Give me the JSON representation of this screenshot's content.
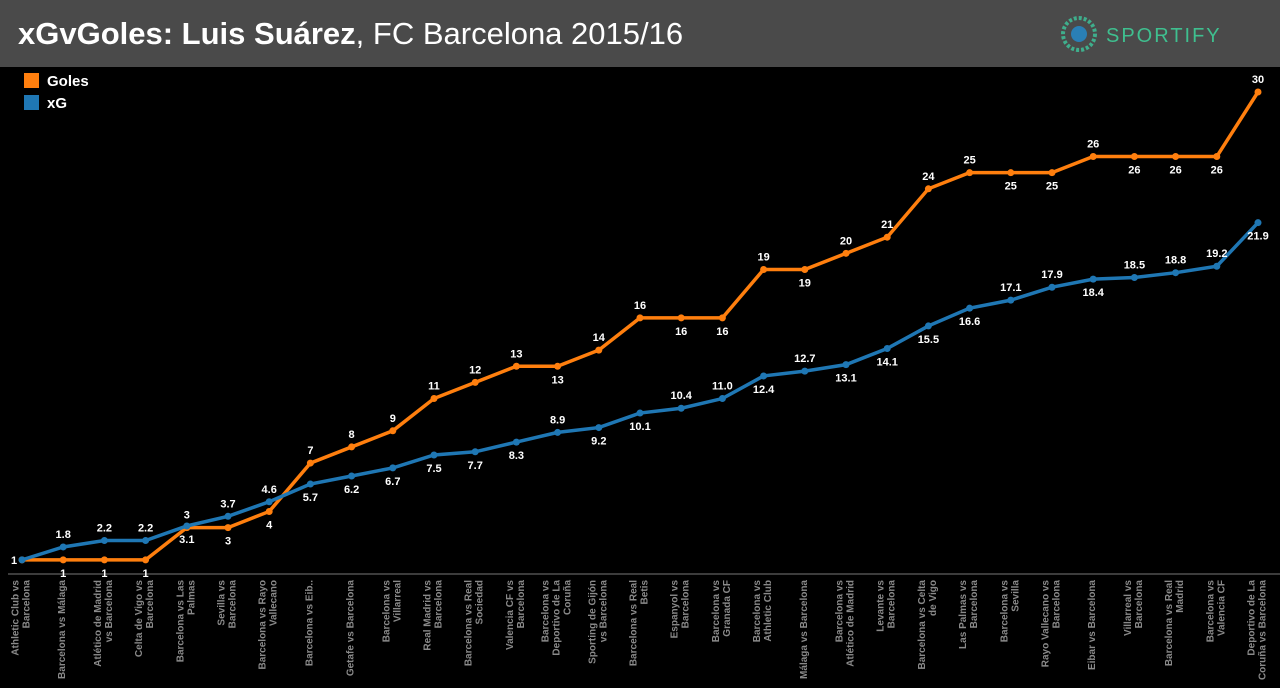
{
  "brand": "SPORTIFY",
  "chart_data": {
    "type": "line",
    "title": "xGvGoles: Luis Suárez",
    "subtitle": ", FC Barcelona 2015/16",
    "categories": [
      "Athletic Club vs Barcelona",
      "Barcelona vs Málaga",
      "Atlético de Madrid vs Barcelona",
      "Celta de Vigo vs Barcelona",
      "Barcelona vs Las Palmas",
      "Sevilla vs Barcelona",
      "Barcelona vs Rayo Vallecano",
      "Barcelona vs Eib..",
      "Getafe vs Barcelona",
      "Barcelona vs Villarreal",
      "Real Madrid vs Barcelona",
      "Barcelona vs Real Sociedad",
      "Valencia CF vs Barcelona",
      "Barcelona vs Deportivo de La Coruña",
      "Sporting de Gijón vs Barcelona",
      "Barcelona vs Real Betis",
      "Espanyol vs Barcelona",
      "Barcelona vs Granada CF",
      "Barcelona vs Athletic Club",
      "Málaga vs Barcelona",
      "Barcelona vs Atlético de Madrid",
      "Levante vs Barcelona",
      "Barcelona vs Celta de Vigo",
      "Las Palmas vs Barcelona",
      "Barcelona vs Sevilla",
      "Rayo Vallecano vs Barcelona",
      "Eibar vs Barcelona",
      "Villarreal vs Barcelona",
      "Barcelona vs Real Madrid",
      "Barcelona vs Valencia CF",
      "Deportivo de La Coruña vs Barcelona"
    ],
    "series": [
      {
        "name": "Goles",
        "color": "#ff7f0e",
        "values": [
          1,
          1,
          1,
          1,
          3,
          3,
          4,
          7,
          8,
          9,
          11,
          12,
          13,
          13,
          14,
          16,
          16,
          16,
          19,
          19,
          20,
          21,
          24,
          25,
          25,
          25,
          26,
          26,
          26,
          26,
          30
        ]
      },
      {
        "name": "xG",
        "color": "#1f77b4",
        "values": [
          1,
          1.8,
          2.2,
          2.2,
          3.1,
          3.7,
          4.6,
          5.7,
          6.2,
          6.7,
          7.5,
          7.7,
          8.3,
          8.9,
          9.2,
          10.1,
          10.4,
          11.0,
          12.4,
          12.7,
          13.1,
          14.1,
          15.5,
          16.6,
          17.1,
          17.9,
          18.4,
          18.5,
          18.8,
          19.2,
          21.9
        ],
        "value_labels": [
          "1",
          "1.8",
          "2.2",
          "2.2",
          "3.1",
          "3.7",
          "4.6",
          "5.7",
          "6.2",
          "6.7",
          "7.5",
          "7.7",
          "8.3",
          "8.9",
          "9.2",
          "10.1",
          "10.4",
          "11.0",
          "12.4",
          "12.7",
          "13.1",
          "14.1",
          "15.5",
          "16.6",
          "17.1",
          "17.9",
          "18.4",
          "18.5",
          "18.8",
          "19.2",
          "21.9"
        ]
      }
    ],
    "ylim": [
      0,
      30
    ],
    "legend": "top-left"
  }
}
